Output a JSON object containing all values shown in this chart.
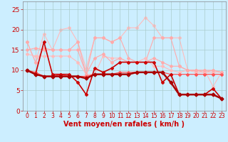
{
  "background_color": "#cceeff",
  "grid_color": "#aacccc",
  "xlabel": "Vent moyen/en rafales ( km/h )",
  "xlabel_color": "#cc0000",
  "xlabel_fontsize": 7,
  "tick_color": "#cc0000",
  "tick_fontsize": 5.5,
  "ytick_fontsize": 6.5,
  "ylim": [
    0,
    27
  ],
  "xlim": [
    -0.5,
    23.5
  ],
  "yticks": [
    0,
    5,
    10,
    15,
    20,
    25
  ],
  "xticks": [
    0,
    1,
    2,
    3,
    4,
    5,
    6,
    7,
    8,
    9,
    10,
    11,
    12,
    13,
    14,
    15,
    16,
    17,
    18,
    19,
    20,
    21,
    22,
    23
  ],
  "lines": [
    {
      "y": [
        17,
        12,
        15.5,
        15,
        15,
        15,
        17,
        9,
        18,
        18,
        17,
        18,
        13,
        12,
        12,
        18,
        18,
        18,
        11,
        10,
        10,
        9.5,
        10,
        9.5
      ],
      "color": "#ffaaaa",
      "linewidth": 0.8,
      "marker": "D",
      "markersize": 2.0,
      "zorder": 2
    },
    {
      "y": [
        17,
        12,
        19,
        15,
        20,
        20.5,
        17,
        10.5,
        18,
        18,
        17,
        18,
        20.5,
        20.5,
        23,
        21,
        18,
        18,
        18,
        10,
        10,
        10,
        6,
        9.5
      ],
      "color": "#ffbbbb",
      "linewidth": 0.8,
      "marker": "D",
      "markersize": 2.0,
      "zorder": 1
    },
    {
      "y": [
        14,
        13.5,
        13.5,
        13.5,
        13.5,
        13.5,
        12,
        9,
        9,
        13.5,
        13,
        13,
        12,
        12,
        13,
        11,
        11,
        10,
        9.5,
        10,
        9.5,
        9.5,
        9.5,
        9.5
      ],
      "color": "#ffbbbb",
      "linewidth": 0.8,
      "marker": "D",
      "markersize": 2.0,
      "zorder": 2
    },
    {
      "y": [
        15,
        15.5,
        15,
        15,
        15,
        15,
        15,
        9,
        13,
        14,
        12,
        13,
        12,
        12,
        12,
        13,
        12,
        11,
        11,
        10,
        10,
        10,
        10,
        9.5
      ],
      "color": "#ffaaaa",
      "linewidth": 0.8,
      "marker": "D",
      "markersize": 2.0,
      "zorder": 2
    },
    {
      "y": [
        10,
        9.5,
        8.5,
        8.5,
        9,
        8.5,
        8.5,
        8.5,
        9,
        9,
        9,
        9.5,
        9.5,
        9.5,
        9.5,
        9.5,
        9.5,
        9,
        9,
        9,
        9,
        9,
        9,
        9
      ],
      "color": "#ff5555",
      "linewidth": 0.9,
      "marker": "D",
      "markersize": 2.0,
      "zorder": 3
    },
    {
      "y": [
        10,
        9,
        17,
        9,
        9,
        9,
        7,
        4,
        10.5,
        9.5,
        10.5,
        12,
        12,
        12,
        12,
        12,
        7,
        9,
        4,
        4,
        4,
        4,
        5.5,
        3
      ],
      "color": "#cc0000",
      "linewidth": 1.2,
      "marker": "D",
      "markersize": 2.0,
      "zorder": 4
    },
    {
      "y": [
        10,
        9,
        8.5,
        8.5,
        8.5,
        8.5,
        8.5,
        8,
        9,
        9,
        9,
        9,
        9,
        9.5,
        9.5,
        9.5,
        9.5,
        7,
        4,
        4,
        4,
        4,
        4,
        3
      ],
      "color": "#aa0000",
      "linewidth": 1.8,
      "marker": "D",
      "markersize": 2.5,
      "zorder": 5
    }
  ]
}
